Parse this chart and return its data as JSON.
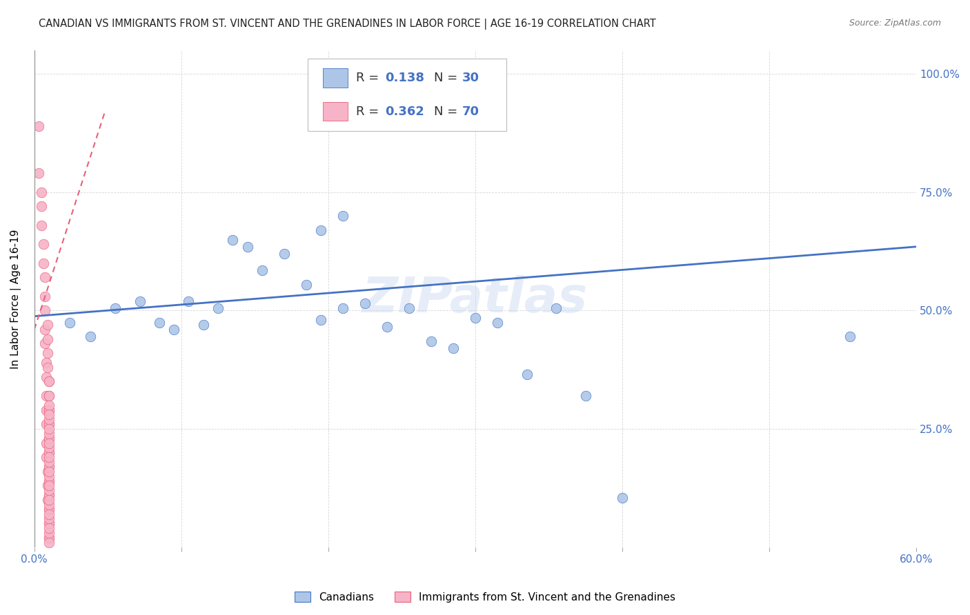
{
  "title": "CANADIAN VS IMMIGRANTS FROM ST. VINCENT AND THE GRENADINES IN LABOR FORCE | AGE 16-19 CORRELATION CHART",
  "source": "Source: ZipAtlas.com",
  "ylabel": "In Labor Force | Age 16-19",
  "xlim": [
    0.0,
    0.6
  ],
  "ylim": [
    0.0,
    1.05
  ],
  "xticks": [
    0.0,
    0.1,
    0.2,
    0.3,
    0.4,
    0.5,
    0.6
  ],
  "xticklabels": [
    "0.0%",
    "",
    "",
    "",
    "",
    "",
    "60.0%"
  ],
  "yticks": [
    0.0,
    0.25,
    0.5,
    0.75,
    1.0
  ],
  "yticklabels": [
    "",
    "25.0%",
    "50.0%",
    "75.0%",
    "100.0%"
  ],
  "watermark": "ZIPatlas",
  "legend_r1": "0.138",
  "legend_n1": "30",
  "legend_r2": "0.362",
  "legend_n2": "70",
  "blue_color": "#adc6e8",
  "pink_color": "#f7b3c8",
  "line_blue": "#4472c4",
  "line_pink": "#e8607a",
  "blue_x": [
    0.024,
    0.038,
    0.055,
    0.072,
    0.085,
    0.095,
    0.105,
    0.115,
    0.125,
    0.135,
    0.145,
    0.155,
    0.17,
    0.185,
    0.195,
    0.21,
    0.225,
    0.24,
    0.255,
    0.27,
    0.285,
    0.3,
    0.315,
    0.335,
    0.355,
    0.375,
    0.4,
    0.195,
    0.21,
    0.555
  ],
  "blue_y": [
    0.475,
    0.445,
    0.505,
    0.52,
    0.475,
    0.46,
    0.52,
    0.47,
    0.505,
    0.65,
    0.635,
    0.585,
    0.62,
    0.555,
    0.48,
    0.505,
    0.515,
    0.465,
    0.505,
    0.435,
    0.42,
    0.485,
    0.475,
    0.365,
    0.505,
    0.32,
    0.105,
    0.67,
    0.7,
    0.445
  ],
  "pink_x": [
    0.003,
    0.003,
    0.005,
    0.005,
    0.005,
    0.006,
    0.006,
    0.007,
    0.007,
    0.007,
    0.007,
    0.007,
    0.008,
    0.008,
    0.008,
    0.008,
    0.008,
    0.008,
    0.008,
    0.009,
    0.009,
    0.009,
    0.009,
    0.009,
    0.009,
    0.009,
    0.01,
    0.01,
    0.01,
    0.01,
    0.01,
    0.01,
    0.01,
    0.01,
    0.01,
    0.01,
    0.01,
    0.01,
    0.01,
    0.01,
    0.01,
    0.01,
    0.01,
    0.01,
    0.01,
    0.01,
    0.01,
    0.01,
    0.01,
    0.01,
    0.01,
    0.01,
    0.01,
    0.01,
    0.01,
    0.01,
    0.01,
    0.01,
    0.01,
    0.01,
    0.01,
    0.01,
    0.01,
    0.01,
    0.01,
    0.01,
    0.01,
    0.01,
    0.01,
    0.01
  ],
  "pink_y": [
    0.89,
    0.79,
    0.75,
    0.72,
    0.68,
    0.64,
    0.6,
    0.57,
    0.53,
    0.5,
    0.46,
    0.43,
    0.39,
    0.36,
    0.32,
    0.29,
    0.26,
    0.22,
    0.19,
    0.16,
    0.13,
    0.1,
    0.47,
    0.44,
    0.41,
    0.38,
    0.35,
    0.32,
    0.29,
    0.26,
    0.23,
    0.2,
    0.17,
    0.14,
    0.11,
    0.08,
    0.05,
    0.02,
    0.35,
    0.32,
    0.29,
    0.26,
    0.23,
    0.2,
    0.17,
    0.14,
    0.11,
    0.08,
    0.05,
    0.02,
    0.3,
    0.27,
    0.24,
    0.21,
    0.18,
    0.15,
    0.12,
    0.09,
    0.06,
    0.03,
    0.28,
    0.25,
    0.22,
    0.19,
    0.16,
    0.13,
    0.1,
    0.07,
    0.04,
    0.01
  ]
}
